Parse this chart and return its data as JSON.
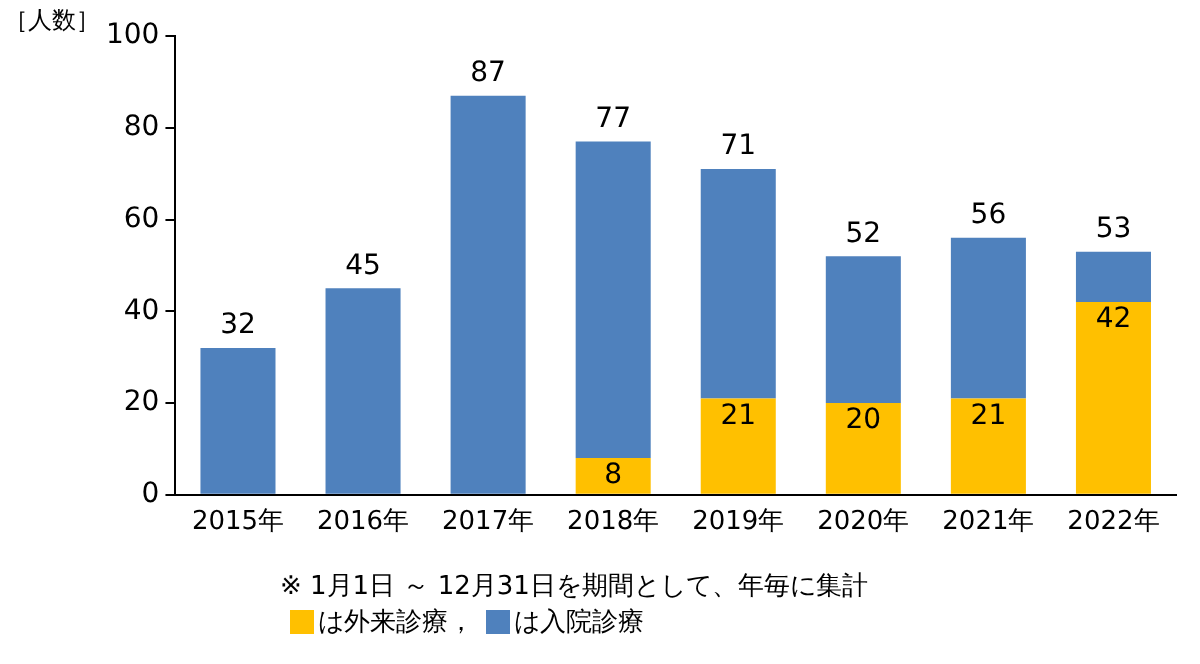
{
  "chart_data": {
    "type": "bar",
    "stacked": true,
    "ylabel": "［人数］",
    "categories": [
      "2015年",
      "2016年",
      "2017年",
      "2018年",
      "2019年",
      "2020年",
      "2021年",
      "2022年"
    ],
    "series": [
      {
        "name": "は外来診療，",
        "color": "#ffc000",
        "values": [
          0,
          0,
          0,
          8,
          21,
          20,
          21,
          42
        ],
        "value_labels": [
          null,
          null,
          null,
          "8",
          "21",
          "20",
          "21",
          "42"
        ]
      },
      {
        "name": "は入院診療",
        "color": "#4f81bd",
        "values": [
          32,
          45,
          87,
          69,
          50,
          32,
          35,
          11
        ]
      }
    ],
    "totals": [
      "32",
      "45",
      "87",
      "77",
      "71",
      "52",
      "56",
      "53"
    ],
    "ylim": [
      0,
      100
    ],
    "yticks": [
      0,
      20,
      40,
      60,
      80,
      100
    ],
    "grid": false,
    "legend": "bottom",
    "annotations": [
      "※ 1月1日 ～ 12月31日を期間として、年毎に集計"
    ]
  }
}
